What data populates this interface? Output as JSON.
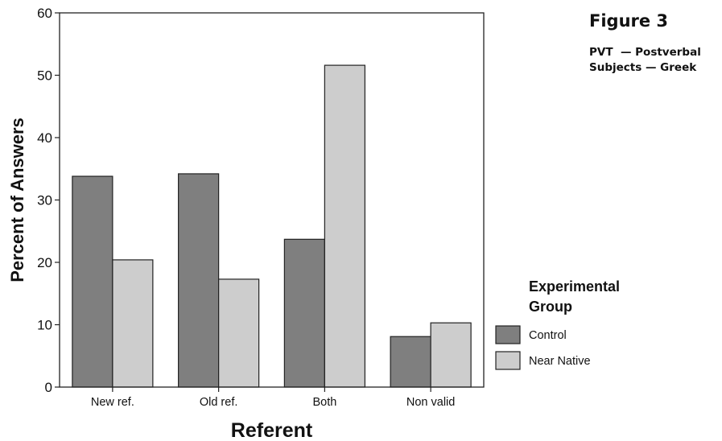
{
  "figure": {
    "title": "Figure 3",
    "caption_lines": [
      "PVT  — Postverbal",
      "Subjects — Greek"
    ]
  },
  "chart_data": {
    "type": "bar",
    "categories": [
      "New ref.",
      "Old ref.",
      "Both",
      "Non valid"
    ],
    "series": [
      {
        "name": "Control",
        "values": [
          33.8,
          34.2,
          23.7,
          8.1
        ],
        "color": "#7f7f7f"
      },
      {
        "name": "Near Native",
        "values": [
          20.4,
          17.3,
          51.6,
          10.3
        ],
        "color": "#cdcdcd"
      }
    ],
    "xlabel": "Referent",
    "ylabel": "Percent of Answers",
    "ylim": [
      0,
      60
    ],
    "yticks": [
      0,
      10,
      20,
      30,
      40,
      50,
      60
    ],
    "grid": false,
    "legend": {
      "title_lines": [
        "Experimental",
        "Group"
      ],
      "placement": "right"
    }
  }
}
